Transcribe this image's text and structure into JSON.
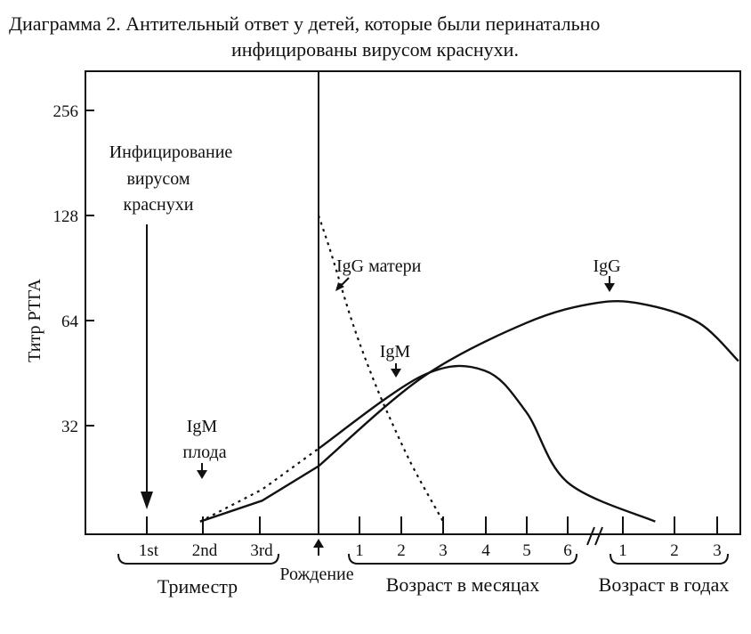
{
  "chart_data": {
    "type": "line",
    "title_line1": "Диаграмма 2. Антительный ответ у детей, которые были перинатально",
    "title_line2": "инфицированы вирусом краснухи.",
    "ylabel": "Титр РТГА",
    "yscale": "log2",
    "yticks": [
      {
        "value": 32,
        "label": "32"
      },
      {
        "value": 64,
        "label": "64"
      },
      {
        "value": 128,
        "label": "128"
      },
      {
        "value": 256,
        "label": "256"
      }
    ],
    "xticks": [
      {
        "label": "1st"
      },
      {
        "label": "2nd"
      },
      {
        "label": "3rd"
      },
      {
        "label": "1"
      },
      {
        "label": "2"
      },
      {
        "label": "3"
      },
      {
        "label": "4"
      },
      {
        "label": "5"
      },
      {
        "label": "6"
      },
      {
        "label": "1"
      },
      {
        "label": "2"
      },
      {
        "label": "3"
      }
    ],
    "groups": [
      {
        "label": "Триместр"
      },
      {
        "label": "Рождение"
      },
      {
        "label": "Возраст в месяцах"
      },
      {
        "label": "Возраст в годах"
      }
    ],
    "annotations": {
      "infection_line1": "Инфицирование",
      "infection_line2": "вирусом",
      "infection_line3": "краснухи",
      "fetal_igm_line1": "IgM",
      "fetal_igm_line2": "плода",
      "maternal_igg": "IgG матери",
      "igm": "IgM",
      "igg": "IgG"
    },
    "series": [
      {
        "label": "IgG матери",
        "style": "dotted",
        "points": [
          [
            0,
            128
          ],
          [
            0.3,
            100
          ],
          [
            0.8,
            64
          ],
          [
            1.3,
            44
          ],
          [
            1.8,
            32
          ],
          [
            2.3,
            24
          ],
          [
            3.0,
            17
          ]
        ]
      },
      {
        "label": "IgM",
        "style": "solid",
        "points": [
          [
            -4.2,
            17
          ],
          [
            -2.0,
            21
          ],
          [
            0,
            27.5
          ],
          [
            2.5,
            44.5
          ],
          [
            4.0,
            46
          ],
          [
            5.0,
            35
          ],
          [
            6.0,
            22
          ],
          [
            8.0,
            17
          ]
        ]
      },
      {
        "label": "IgG",
        "style": "solid",
        "points": [
          [
            -4.2,
            17
          ],
          [
            -2.0,
            19.5
          ],
          [
            0,
            24.5
          ],
          [
            2.5,
            44
          ],
          [
            5.0,
            63
          ],
          [
            6.7,
            72
          ],
          [
            7.8,
            71
          ],
          [
            9.0,
            63
          ],
          [
            9.9,
            49
          ]
        ]
      }
    ]
  }
}
